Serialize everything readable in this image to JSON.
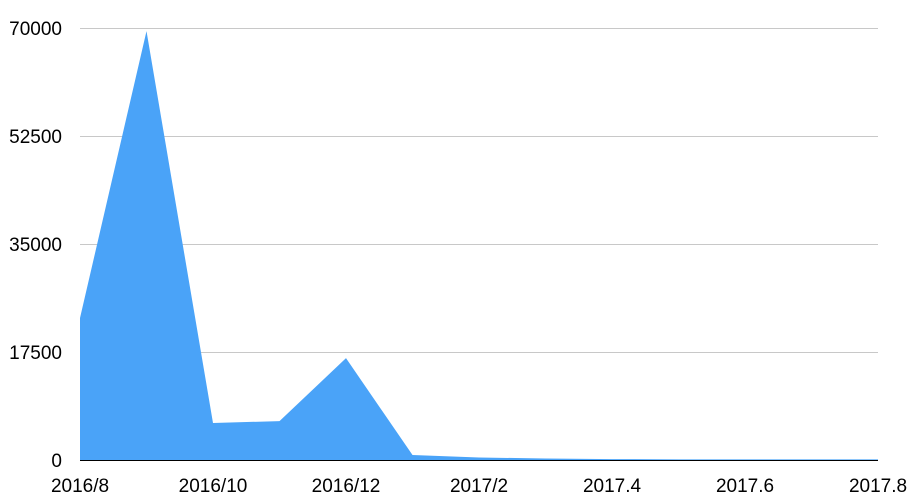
{
  "chart_data": {
    "type": "area",
    "title": "",
    "xlabel": "",
    "ylabel": "",
    "x": [
      "2016/8",
      "2016/9",
      "2016/10",
      "2016/11",
      "2016/12",
      "2017/1",
      "2017/2",
      "2017/3",
      "2017.4",
      "2017/5",
      "2017.6",
      "2017/7",
      "2017.8"
    ],
    "values": [
      23000,
      69500,
      6000,
      6300,
      16500,
      800,
      400,
      250,
      150,
      100,
      100,
      100,
      100
    ],
    "x_tick_labels": [
      "2016/8",
      "2016/10",
      "2016/12",
      "2017/2",
      "2017.4",
      "2017.6",
      "2017.8"
    ],
    "y_ticks": [
      0,
      17500,
      35000,
      52500,
      70000
    ],
    "y_tick_labels": [
      "0",
      "17500",
      "35000",
      "52500",
      "70000"
    ],
    "ylim": [
      0,
      70000
    ],
    "grid": true,
    "legend": "none",
    "color": "#4aa3f8"
  }
}
